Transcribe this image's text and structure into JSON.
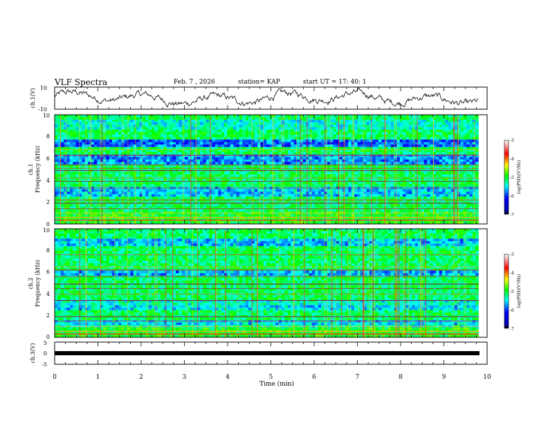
{
  "header": {
    "title": "VLF Spectra",
    "date": "Feb. 7 , 2026",
    "station": "station= KAP",
    "start": "start  UT  =   17: 40: 1"
  },
  "chart_data": [
    {
      "type": "line",
      "name": "ch1-waveform",
      "ylabel": "ch.1(V)",
      "ylim": [
        -10,
        10
      ],
      "yticks": [
        "10",
        "-10"
      ],
      "xlim": [
        0,
        10
      ],
      "data_end_min": 9.8
    },
    {
      "type": "heatmap",
      "name": "ch1-spectrogram",
      "ylabel_line1": "ch.1",
      "ylabel_line2": "Frequency  (kHz)",
      "ylim": [
        0,
        10
      ],
      "yticks": [
        "0",
        "2",
        "4",
        "6",
        "8",
        "10"
      ],
      "xlim": [
        0,
        10
      ],
      "data_end_min": 9.8,
      "colorbar": {
        "label": "log(PSD)(V²/Hz)",
        "range": [
          -7,
          -3
        ],
        "ticks": [
          "-3",
          "-4",
          "-5",
          "-6",
          "-7"
        ]
      }
    },
    {
      "type": "heatmap",
      "name": "ch2-spectrogram",
      "ylabel_line1": "ch.2",
      "ylabel_line2": "Frequency  (kHz)",
      "ylim": [
        0,
        10
      ],
      "yticks": [
        "0",
        "2",
        "4",
        "6",
        "8",
        "10"
      ],
      "xlim": [
        0,
        10
      ],
      "data_end_min": 9.8,
      "colorbar": {
        "label": "log(PSD)(V²/Hz)",
        "range": [
          -7,
          -3
        ],
        "ticks": [
          "-3",
          "-4",
          "-5",
          "-6",
          "-7"
        ]
      }
    },
    {
      "type": "line",
      "name": "ch3-waveform",
      "ylabel": "ch.3(V)",
      "ylim": [
        -5,
        5
      ],
      "yticks": [
        "5",
        "0",
        "-5"
      ],
      "xlim": [
        0,
        10
      ],
      "xticks": [
        "0",
        "1",
        "2",
        "3",
        "4",
        "5",
        "6",
        "7",
        "8",
        "9",
        "10"
      ],
      "xlabel": "Time  (min)",
      "data_end_min": 9.8
    }
  ],
  "colors": {
    "axis": "#000000",
    "background": "#ffffff"
  }
}
